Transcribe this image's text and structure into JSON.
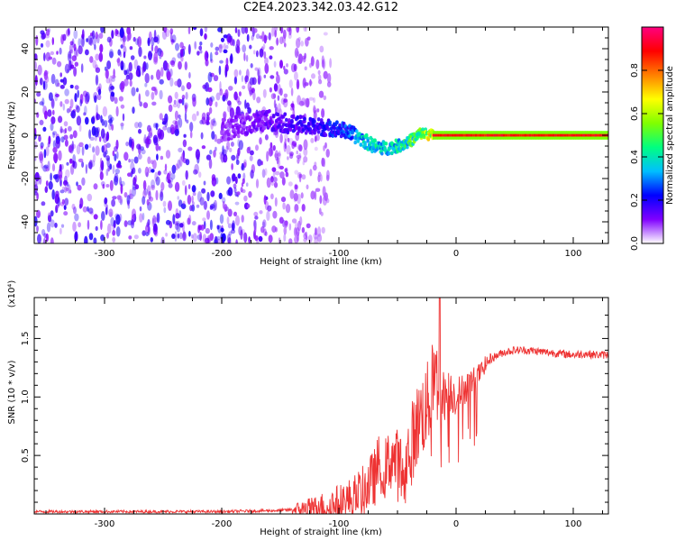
{
  "title": "C2E4.2023.342.03.42.G12",
  "chart_data": [
    {
      "type": "heatmap",
      "description_tag": "spectrogram",
      "xlabel": "Height of straight line (km)",
      "ylabel": "Frequency (Hz)",
      "xlim": [
        -360,
        130
      ],
      "ylim": [
        -50,
        50
      ],
      "xticks": [
        -300,
        -200,
        -100,
        0,
        100
      ],
      "yticks": [
        -40,
        -20,
        0,
        20,
        40
      ],
      "colorbar": {
        "label": "Normalized spectral amplitude",
        "range": [
          0.0,
          1.0
        ],
        "ticks": [
          "0.0",
          "0.2",
          "0.4",
          "0.6",
          "0.8"
        ],
        "colormap": [
          "#ffffff",
          "#8000ff",
          "#0000ff",
          "#00bfff",
          "#00ff80",
          "#80ff00",
          "#ffff00",
          "#ff8000",
          "#ff0000",
          "#ff0080"
        ]
      },
      "centerline": {
        "x": [
          -200,
          -180,
          -160,
          -140,
          -120,
          -100,
          -90,
          -80,
          -70,
          -60,
          -50,
          -40,
          -30,
          -20,
          -10,
          0,
          50,
          100,
          130
        ],
        "freq": [
          2,
          5,
          7,
          5,
          4,
          3,
          1,
          -2,
          -5,
          -6,
          -5,
          -3,
          1,
          0,
          0,
          0,
          0,
          0,
          0
        ],
        "amplitude": [
          0.1,
          0.12,
          0.15,
          0.18,
          0.2,
          0.25,
          0.3,
          0.4,
          0.45,
          0.4,
          0.45,
          0.5,
          0.55,
          0.75,
          0.8,
          0.85,
          0.85,
          0.85,
          0.85
        ]
      },
      "noise_region": {
        "x_from": -360,
        "x_to": -120
      }
    },
    {
      "type": "line",
      "xlabel": "Height of straight line (km)",
      "ylabel": "SNR (10 * v/v)",
      "multiplier": "(x10⁴)",
      "xlim": [
        -360,
        130
      ],
      "ylim": [
        0,
        1.85
      ],
      "xticks": [
        -300,
        -200,
        -100,
        0,
        100
      ],
      "yticks": [
        0.5,
        1.0,
        1.5
      ],
      "ytick_labels": [
        "0.5",
        "1.0",
        "1.5"
      ],
      "color": "#ee3333",
      "series": [
        {
          "x": [
            -360,
            -300,
            -250,
            -200,
            -150,
            -120,
            -100,
            -90,
            -80,
            -75,
            -70,
            -65,
            -60,
            -55,
            -50,
            -45,
            -40,
            -35,
            -30,
            -25,
            -20,
            -16,
            -14,
            -12,
            -10,
            -5,
            0,
            5,
            10,
            15,
            20,
            25,
            30,
            40,
            50,
            60,
            70,
            80,
            90,
            100,
            110,
            120,
            130
          ],
          "y": [
            0.02,
            0.02,
            0.02,
            0.02,
            0.03,
            0.05,
            0.09,
            0.12,
            0.18,
            0.25,
            0.3,
            0.45,
            0.38,
            0.5,
            0.42,
            0.35,
            0.55,
            0.7,
            0.85,
            0.9,
            1.1,
            1.25,
            0.9,
            1.05,
            1.0,
            1.05,
            1.0,
            1.05,
            1.1,
            1.15,
            1.2,
            1.28,
            1.33,
            1.38,
            1.4,
            1.4,
            1.39,
            1.38,
            1.37,
            1.36,
            1.37,
            1.36,
            1.36
          ]
        }
      ]
    }
  ]
}
